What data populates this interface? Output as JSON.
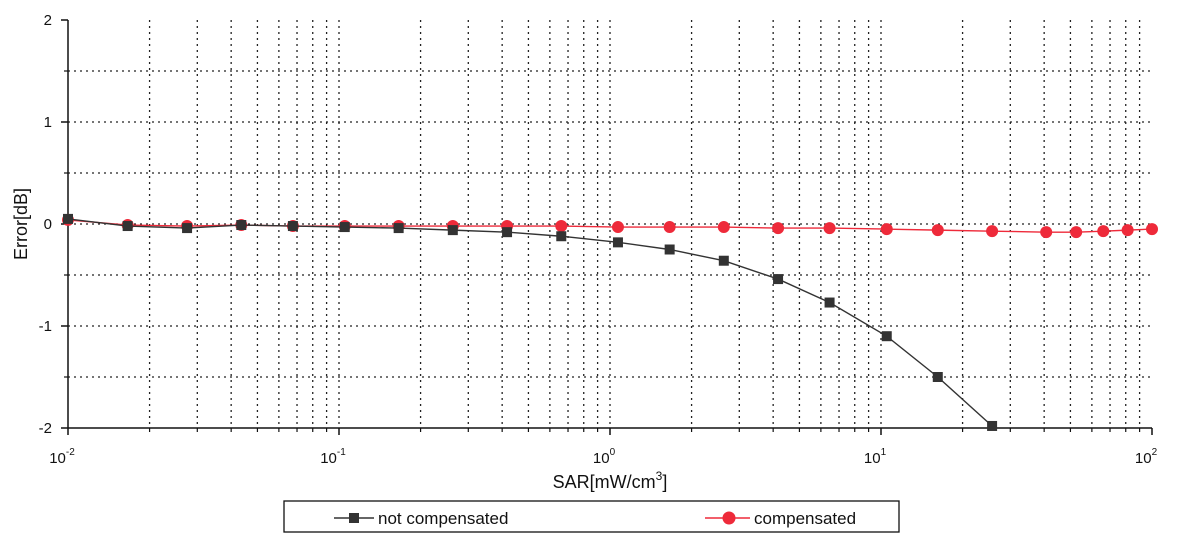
{
  "chart_data": {
    "type": "line",
    "xlabel": "SAR[mW/cm",
    "xlabel_sup": "3",
    "xlabel_end": "]",
    "ylabel": "Error[dB]",
    "x_scale": "log",
    "xlim": [
      0.01,
      100
    ],
    "ylim": [
      -2,
      2
    ],
    "x_ticks": [
      {
        "base": "10",
        "exp": "-2"
      },
      {
        "base": "10",
        "exp": "-1"
      },
      {
        "base": "10",
        "exp": "0"
      },
      {
        "base": "10",
        "exp": "1"
      },
      {
        "base": "10",
        "exp": "2"
      }
    ],
    "y_ticks": [
      "2",
      "1",
      "0",
      "-1",
      "-2"
    ],
    "y_tick_values": [
      2,
      1,
      0,
      -1,
      -2
    ],
    "grid": true,
    "legend_position": "bottom-center",
    "series": [
      {
        "name": "not compensated",
        "color": "#333333",
        "marker": "square",
        "x": [
          0.01,
          0.0166,
          0.0275,
          0.0436,
          0.0676,
          0.105,
          0.166,
          0.263,
          0.417,
          0.661,
          1.07,
          1.66,
          2.63,
          4.17,
          6.46,
          10.5,
          16.2,
          25.7
        ],
        "y": [
          0.05,
          -0.02,
          -0.04,
          -0.01,
          -0.02,
          -0.03,
          -0.04,
          -0.06,
          -0.08,
          -0.12,
          -0.18,
          -0.25,
          -0.36,
          -0.54,
          -0.77,
          -1.1,
          -1.5,
          -1.98
        ]
      },
      {
        "name": "compensated",
        "color": "#ee2a3a",
        "marker": "circle",
        "x": [
          0.01,
          0.0166,
          0.0275,
          0.0436,
          0.0676,
          0.105,
          0.166,
          0.263,
          0.417,
          0.661,
          1.07,
          1.66,
          2.63,
          4.17,
          6.46,
          10.5,
          16.2,
          25.7,
          40.7,
          52.5,
          66.1,
          81.3,
          100
        ],
        "y": [
          0.04,
          -0.01,
          -0.02,
          -0.01,
          -0.02,
          -0.02,
          -0.02,
          -0.02,
          -0.02,
          -0.02,
          -0.03,
          -0.03,
          -0.03,
          -0.04,
          -0.04,
          -0.05,
          -0.06,
          -0.07,
          -0.08,
          -0.08,
          -0.07,
          -0.06,
          -0.05
        ]
      }
    ]
  }
}
